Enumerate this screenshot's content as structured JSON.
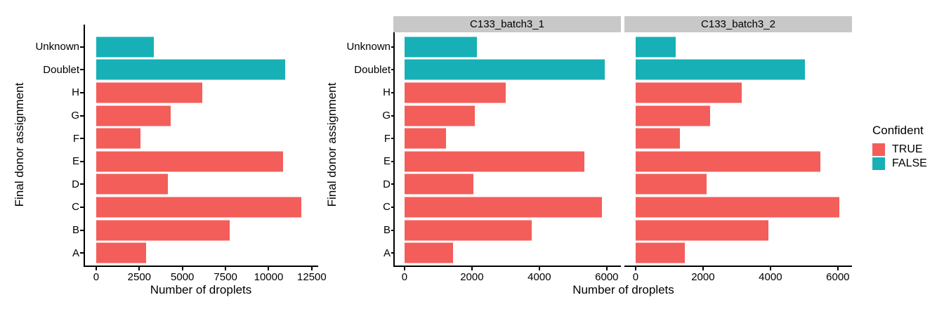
{
  "figure": {
    "background": "#FFFFFF",
    "colors": {
      "true": "#F35E5A",
      "false": "#17B0B6",
      "strip_bg": "#C8C8C8",
      "axis": "#000000",
      "text": "#000000"
    }
  },
  "legend": {
    "title": "Confident",
    "items": [
      {
        "label": "TRUE",
        "key": "true"
      },
      {
        "label": "FALSE",
        "key": "false"
      }
    ]
  },
  "chart_data": [
    {
      "type": "bar",
      "orientation": "horizontal",
      "facet_label": "",
      "xlabel": "Number of droplets",
      "ylabel": "Final donor assignment",
      "category_order": "top_to_bottom",
      "categories": [
        "Unknown",
        "Doublet",
        "H",
        "G",
        "F",
        "E",
        "D",
        "C",
        "B",
        "A"
      ],
      "confident": [
        false,
        false,
        true,
        true,
        true,
        true,
        true,
        true,
        true,
        true
      ],
      "values": [
        3350,
        10970,
        6150,
        4300,
        2550,
        10830,
        4140,
        11900,
        7730,
        2910
      ],
      "xticks": [
        0,
        2500,
        5000,
        7500,
        10000,
        12500
      ],
      "xlim": [
        -650,
        12790
      ],
      "grid": false,
      "legend_position": "none"
    },
    {
      "type": "bar",
      "orientation": "horizontal",
      "facet_label": "C133_batch3_1",
      "xlabel": "Number of droplets",
      "ylabel": "Final donor assignment",
      "category_order": "top_to_bottom",
      "categories": [
        "Unknown",
        "Doublet",
        "H",
        "G",
        "F",
        "E",
        "D",
        "C",
        "B",
        "A"
      ],
      "confident": [
        false,
        false,
        true,
        true,
        true,
        true,
        true,
        true,
        true,
        true
      ],
      "values": [
        2150,
        5950,
        3010,
        2090,
        1240,
        5340,
        2040,
        5860,
        3780,
        1440
      ],
      "xticks": [
        0,
        2000,
        4000,
        6000
      ],
      "xlim": [
        -290,
        6420
      ],
      "grid": false,
      "legend_position": "right"
    },
    {
      "type": "bar",
      "orientation": "horizontal",
      "facet_label": "C133_batch3_2",
      "xlabel": "Number of droplets",
      "ylabel": "Final donor assignment",
      "category_order": "top_to_bottom",
      "categories": [
        "Unknown",
        "Doublet",
        "H",
        "G",
        "F",
        "E",
        "D",
        "C",
        "B",
        "A"
      ],
      "confident": [
        false,
        false,
        true,
        true,
        true,
        true,
        true,
        true,
        true,
        true
      ],
      "values": [
        1200,
        5020,
        3140,
        2210,
        1310,
        5490,
        2100,
        6040,
        3950,
        1470
      ],
      "xticks": [
        0,
        2000,
        4000,
        6000
      ],
      "xlim": [
        -290,
        6420
      ],
      "grid": false,
      "legend_position": "right"
    }
  ]
}
